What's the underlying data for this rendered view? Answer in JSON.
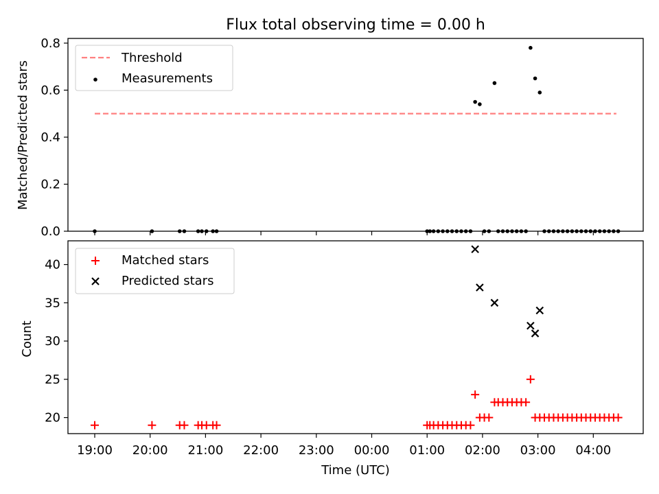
{
  "chart_data": {
    "title": "Flux total observing time = 0.00 h",
    "xlabel": "Time (UTC)",
    "x_tick_labels": [
      "19:00",
      "20:00",
      "21:00",
      "22:00",
      "23:00",
      "00:00",
      "01:00",
      "02:00",
      "03:00",
      "04:00"
    ],
    "panels": [
      {
        "type": "scatter",
        "ylabel": "Matched/Predicted stars",
        "ylim": [
          0,
          0.82
        ],
        "yticks": [
          "0.0",
          "0.2",
          "0.4",
          "0.6",
          "0.8"
        ],
        "yvalues": [
          0,
          0.2,
          0.4,
          0.6,
          0.8
        ],
        "legend": {
          "placement": "upper-left",
          "entries": [
            {
              "label": "Threshold",
              "marker": "dashed-line",
              "color": "#ff7f7f"
            },
            {
              "label": "Measurements",
              "marker": "dot",
              "color": "#000000"
            }
          ]
        },
        "threshold": {
          "label": "Threshold",
          "value": 0.5,
          "x_start": "19:00",
          "x_end": "04:25",
          "color": "#ff7f7f"
        },
        "measurements": {
          "label": "Measurements",
          "color": "#000000",
          "points": [
            [
              "19:00",
              0
            ],
            [
              "20:02",
              0
            ],
            [
              "20:32",
              0
            ],
            [
              "20:37",
              0
            ],
            [
              "20:52",
              0
            ],
            [
              "20:56",
              0
            ],
            [
              "21:01",
              0
            ],
            [
              "21:08",
              0
            ],
            [
              "21:12",
              0
            ],
            [
              "01:00",
              0
            ],
            [
              "01:03",
              0
            ],
            [
              "01:07",
              0
            ],
            [
              "01:12",
              0
            ],
            [
              "01:17",
              0
            ],
            [
              "01:22",
              0
            ],
            [
              "01:27",
              0
            ],
            [
              "01:32",
              0
            ],
            [
              "01:37",
              0
            ],
            [
              "01:42",
              0
            ],
            [
              "01:47",
              0
            ],
            [
              "01:52",
              0.55
            ],
            [
              "01:57",
              0.54
            ],
            [
              "02:02",
              0
            ],
            [
              "02:07",
              0
            ],
            [
              "02:13",
              0.63
            ],
            [
              "02:17",
              0
            ],
            [
              "02:22",
              0
            ],
            [
              "02:27",
              0
            ],
            [
              "02:32",
              0
            ],
            [
              "02:37",
              0
            ],
            [
              "02:42",
              0
            ],
            [
              "02:47",
              0
            ],
            [
              "02:52",
              0.78
            ],
            [
              "02:57",
              0.65
            ],
            [
              "03:02",
              0.59
            ],
            [
              "03:07",
              0
            ],
            [
              "03:12",
              0
            ],
            [
              "03:17",
              0
            ],
            [
              "03:22",
              0
            ],
            [
              "03:27",
              0
            ],
            [
              "03:32",
              0
            ],
            [
              "03:37",
              0
            ],
            [
              "03:42",
              0
            ],
            [
              "03:47",
              0
            ],
            [
              "03:52",
              0
            ],
            [
              "03:57",
              0
            ],
            [
              "04:02",
              0
            ],
            [
              "04:07",
              0
            ],
            [
              "04:12",
              0
            ],
            [
              "04:17",
              0
            ],
            [
              "04:22",
              0
            ],
            [
              "04:27",
              0
            ]
          ]
        }
      },
      {
        "type": "scatter",
        "ylabel": "Count",
        "ylim": [
          17.9,
          43.1
        ],
        "yticks": [
          "20",
          "25",
          "30",
          "35",
          "40"
        ],
        "yvalues": [
          20,
          25,
          30,
          35,
          40
        ],
        "legend": {
          "placement": "upper-left",
          "entries": [
            {
              "label": "Matched stars",
              "marker": "plus",
              "color": "#ff0000"
            },
            {
              "label": "Predicted stars",
              "marker": "x",
              "color": "#000000"
            }
          ]
        },
        "matched": {
          "label": "Matched stars",
          "color": "#ff0000",
          "points": [
            [
              "19:00",
              19
            ],
            [
              "20:02",
              19
            ],
            [
              "20:32",
              19
            ],
            [
              "20:37",
              19
            ],
            [
              "20:52",
              19
            ],
            [
              "20:56",
              19
            ],
            [
              "21:01",
              19
            ],
            [
              "21:08",
              19
            ],
            [
              "21:12",
              19
            ],
            [
              "01:00",
              19
            ],
            [
              "01:03",
              19
            ],
            [
              "01:07",
              19
            ],
            [
              "01:12",
              19
            ],
            [
              "01:17",
              19
            ],
            [
              "01:22",
              19
            ],
            [
              "01:27",
              19
            ],
            [
              "01:32",
              19
            ],
            [
              "01:37",
              19
            ],
            [
              "01:42",
              19
            ],
            [
              "01:47",
              19
            ],
            [
              "01:52",
              23
            ],
            [
              "01:57",
              20
            ],
            [
              "02:02",
              20
            ],
            [
              "02:07",
              20
            ],
            [
              "02:13",
              22
            ],
            [
              "02:17",
              22
            ],
            [
              "02:22",
              22
            ],
            [
              "02:27",
              22
            ],
            [
              "02:32",
              22
            ],
            [
              "02:37",
              22
            ],
            [
              "02:42",
              22
            ],
            [
              "02:47",
              22
            ],
            [
              "02:52",
              25
            ],
            [
              "02:57",
              20
            ],
            [
              "03:02",
              20
            ],
            [
              "03:07",
              20
            ],
            [
              "03:12",
              20
            ],
            [
              "03:17",
              20
            ],
            [
              "03:22",
              20
            ],
            [
              "03:27",
              20
            ],
            [
              "03:32",
              20
            ],
            [
              "03:37",
              20
            ],
            [
              "03:42",
              20
            ],
            [
              "03:47",
              20
            ],
            [
              "03:52",
              20
            ],
            [
              "03:57",
              20
            ],
            [
              "04:02",
              20
            ],
            [
              "04:07",
              20
            ],
            [
              "04:12",
              20
            ],
            [
              "04:17",
              20
            ],
            [
              "04:22",
              20
            ],
            [
              "04:27",
              20
            ]
          ]
        },
        "predicted": {
          "label": "Predicted stars",
          "color": "#000000",
          "points": [
            [
              "01:52",
              42
            ],
            [
              "01:57",
              37
            ],
            [
              "02:13",
              35
            ],
            [
              "02:52",
              32
            ],
            [
              "02:57",
              31
            ],
            [
              "03:02",
              34
            ]
          ]
        }
      }
    ]
  }
}
